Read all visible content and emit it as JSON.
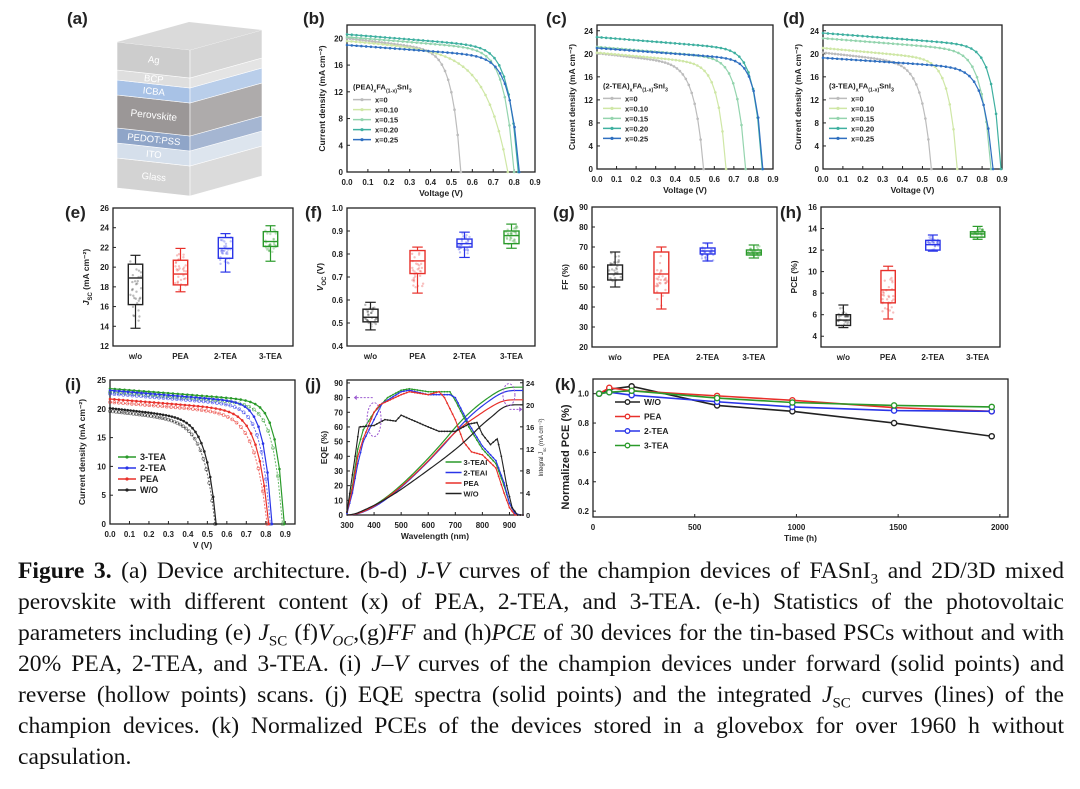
{
  "figure": {
    "device_stack": {
      "label": "(a)",
      "layers": [
        {
          "name": "Ag",
          "color": "#cdcdcd"
        },
        {
          "name": "BCP",
          "color": "#dedede"
        },
        {
          "name": "ICBA",
          "color": "#a8c2e6"
        },
        {
          "name": "Perovskite",
          "color": "#9b9797"
        },
        {
          "name": "PEDOT:PSS",
          "color": "#8fa5c8"
        },
        {
          "name": "ITO",
          "color": "#d5dfeb"
        },
        {
          "name": "Glass",
          "color": "#d3d3d3"
        }
      ]
    },
    "colors": {
      "x0": "#bcbcbc",
      "x010": "#cfe7a6",
      "x015": "#94d4ae",
      "x020": "#3fb0a0",
      "x025": "#2f6fc0",
      "wo": "#222222",
      "pea": "#e8302a",
      "tea2": "#2a35e8",
      "tea3": "#2a9a2a",
      "annot": "#9b59d0"
    }
  },
  "chart_data": [
    {
      "id": "b",
      "label": "(b)",
      "type": "line",
      "xlabel": "Voltage (V)",
      "ylabel": "Current density (mA cm⁻²)",
      "xlim": [
        0,
        0.9
      ],
      "ylim": [
        0,
        22
      ],
      "xticks": [
        "0.0",
        "0.1",
        "0.2",
        "0.3",
        "0.4",
        "0.5",
        "0.6",
        "0.7",
        "0.8",
        "0.9"
      ],
      "yticks": [
        "0",
        "4",
        "8",
        "12",
        "16",
        "20"
      ],
      "legend_title": [
        {
          "t": "(PEA)"
        },
        {
          "t": "x",
          "sub": true
        },
        {
          "t": "FA"
        },
        {
          "t": "(1-x)",
          "sub": true
        },
        {
          "t": "SnI"
        },
        {
          "t": "3",
          "sub": true
        }
      ],
      "series": [
        {
          "name": "x=0",
          "color_key": "x0",
          "jsc": 20.0,
          "voc": 0.545,
          "a": 0.045
        },
        {
          "name": "x=0.10",
          "color_key": "x010",
          "jsc": 19.6,
          "voc": 0.77,
          "a": 0.11
        },
        {
          "name": "x=0.15",
          "color_key": "x015",
          "jsc": 20.2,
          "voc": 0.8,
          "a": 0.05
        },
        {
          "name": "x=0.20",
          "color_key": "x020",
          "jsc": 20.6,
          "voc": 0.82,
          "a": 0.05
        },
        {
          "name": "x=0.25",
          "color_key": "x025",
          "jsc": 19.0,
          "voc": 0.825,
          "a": 0.05
        }
      ]
    },
    {
      "id": "c",
      "label": "(c)",
      "type": "line",
      "xlabel": "Voltage (V)",
      "ylabel": "Current density (mA cm⁻²)",
      "xlim": [
        0,
        0.9
      ],
      "ylim": [
        0,
        25
      ],
      "xticks": [
        "0.0",
        "0.1",
        "0.2",
        "0.3",
        "0.4",
        "0.5",
        "0.6",
        "0.7",
        "0.8",
        "0.9"
      ],
      "yticks": [
        "0",
        "4",
        "8",
        "12",
        "16",
        "20",
        "24"
      ],
      "legend_title": [
        {
          "t": "(2-TEA)"
        },
        {
          "t": "x",
          "sub": true
        },
        {
          "t": "FA"
        },
        {
          "t": "(1-x)",
          "sub": true
        },
        {
          "t": "SnI"
        },
        {
          "t": "3",
          "sub": true
        }
      ],
      "series": [
        {
          "name": "x=0",
          "color_key": "x0",
          "jsc": 20.1,
          "voc": 0.545,
          "a": 0.05
        },
        {
          "name": "x=0.10",
          "color_key": "x010",
          "jsc": 20.2,
          "voc": 0.66,
          "a": 0.045
        },
        {
          "name": "x=0.15",
          "color_key": "x015",
          "jsc": 21.2,
          "voc": 0.76,
          "a": 0.045
        },
        {
          "name": "x=0.20",
          "color_key": "x020",
          "jsc": 22.9,
          "voc": 0.845,
          "a": 0.045
        },
        {
          "name": "x=0.25",
          "color_key": "x025",
          "jsc": 21.0,
          "voc": 0.848,
          "a": 0.04
        }
      ]
    },
    {
      "id": "d",
      "label": "(d)",
      "type": "line",
      "xlabel": "Voltage (V)",
      "ylabel": "Current density (mA cm⁻²)",
      "xlim": [
        0,
        0.9
      ],
      "ylim": [
        0,
        25
      ],
      "xticks": [
        "0.0",
        "0.1",
        "0.2",
        "0.3",
        "0.4",
        "0.5",
        "0.6",
        "0.7",
        "0.8",
        "0.9"
      ],
      "yticks": [
        "0",
        "4",
        "8",
        "12",
        "16",
        "20",
        "24"
      ],
      "legend_title": [
        {
          "t": "(3-TEA)"
        },
        {
          "t": "x",
          "sub": true
        },
        {
          "t": "FA"
        },
        {
          "t": "(1-x)",
          "sub": true
        },
        {
          "t": "SnI"
        },
        {
          "t": "3",
          "sub": true
        }
      ],
      "series": [
        {
          "name": "x=0",
          "color_key": "x0",
          "jsc": 20.2,
          "voc": 0.545,
          "a": 0.05
        },
        {
          "name": "x=0.10",
          "color_key": "x010",
          "jsc": 21.0,
          "voc": 0.675,
          "a": 0.045
        },
        {
          "name": "x=0.15",
          "color_key": "x015",
          "jsc": 22.7,
          "voc": 0.845,
          "a": 0.05
        },
        {
          "name": "x=0.20",
          "color_key": "x020",
          "jsc": 23.6,
          "voc": 0.895,
          "a": 0.045
        },
        {
          "name": "x=0.25",
          "color_key": "x025",
          "jsc": 19.3,
          "voc": 0.855,
          "a": 0.05
        }
      ]
    },
    {
      "id": "e",
      "label": "(e)",
      "type": "box",
      "ylabel": [
        {
          "t": "J",
          "i": true
        },
        {
          "t": "SC",
          "sub": true
        },
        {
          "t": " (mA cm⁻²)"
        }
      ],
      "ylim": [
        12,
        26
      ],
      "yticks": [
        "12",
        "14",
        "16",
        "18",
        "20",
        "22",
        "24",
        "26"
      ],
      "categories": [
        "w/o",
        "PEA",
        "2-TEA",
        "3-TEA"
      ],
      "color_keys": [
        "wo",
        "pea",
        "tea2",
        "tea3"
      ],
      "stats": [
        [
          13.8,
          16.2,
          18.9,
          20.3,
          21.2
        ],
        [
          17.5,
          18.2,
          19.3,
          20.7,
          21.9
        ],
        [
          19.5,
          20.9,
          21.9,
          23.0,
          23.4
        ],
        [
          20.6,
          22.1,
          22.6,
          23.6,
          24.2
        ]
      ]
    },
    {
      "id": "f",
      "label": "(f)",
      "type": "box",
      "ylabel": [
        {
          "t": "V",
          "i": true
        },
        {
          "t": "OC",
          "sub": true
        },
        {
          "t": " (V)"
        }
      ],
      "ylim": [
        0.4,
        1.0
      ],
      "yticks": [
        "0.4",
        "0.5",
        "0.6",
        "0.7",
        "0.8",
        "0.9",
        "1.0"
      ],
      "categories": [
        "w/o",
        "PEA",
        "2-TEA",
        "3-TEA"
      ],
      "color_keys": [
        "wo",
        "pea",
        "tea2",
        "tea3"
      ],
      "stats": [
        [
          0.47,
          0.505,
          0.525,
          0.56,
          0.59
        ],
        [
          0.63,
          0.715,
          0.77,
          0.815,
          0.83
        ],
        [
          0.785,
          0.83,
          0.845,
          0.865,
          0.895
        ],
        [
          0.825,
          0.845,
          0.88,
          0.9,
          0.93
        ]
      ]
    },
    {
      "id": "g",
      "label": "(g)",
      "type": "box",
      "ylabel": [
        {
          "t": "FF (%)"
        }
      ],
      "ylim": [
        20,
        90
      ],
      "yticks": [
        "20",
        "30",
        "40",
        "50",
        "60",
        "70",
        "80",
        "90"
      ],
      "categories": [
        "w/o",
        "PEA",
        "2-TEA",
        "3-TEA"
      ],
      "color_keys": [
        "wo",
        "pea",
        "tea2",
        "tea3"
      ],
      "stats": [
        [
          50,
          53.5,
          56.5,
          61,
          67.5
        ],
        [
          39,
          47,
          56.5,
          67.5,
          70
        ],
        [
          63,
          66.5,
          68,
          69.5,
          72
        ],
        [
          64.5,
          66,
          67,
          68.5,
          71
        ]
      ]
    },
    {
      "id": "h",
      "label": "(h)",
      "type": "box",
      "ylabel": [
        {
          "t": "PCE (%)"
        }
      ],
      "ylim": [
        3,
        16
      ],
      "yticks": [
        "4",
        "6",
        "8",
        "10",
        "12",
        "14",
        "16"
      ],
      "categories": [
        "w/o",
        "PEA",
        "2-TEA",
        "3-TEA"
      ],
      "color_keys": [
        "wo",
        "pea",
        "tea2",
        "tea3"
      ],
      "stats": [
        [
          4.8,
          5.0,
          5.5,
          6.0,
          6.9
        ],
        [
          5.6,
          7.1,
          8.3,
          10.1,
          10.5
        ],
        [
          11.9,
          12.0,
          12.5,
          12.9,
          13.4
        ],
        [
          13.0,
          13.2,
          13.5,
          13.7,
          14.2
        ]
      ]
    },
    {
      "id": "i",
      "label": "(i)",
      "type": "line",
      "xlabel": "V (V)",
      "ylabel": "Current density (mA cm⁻²)",
      "xlim": [
        0,
        0.95
      ],
      "ylim": [
        0,
        25
      ],
      "xticks": [
        "0.0",
        "0.1",
        "0.2",
        "0.3",
        "0.4",
        "0.5",
        "0.6",
        "0.7",
        "0.8",
        "0.9"
      ],
      "yticks": [
        "0",
        "5",
        "10",
        "15",
        "20",
        "25"
      ],
      "reverse_scan": true,
      "series": [
        {
          "name": "3-TEA",
          "color_key": "tea3",
          "jsc": 23.5,
          "voc": 0.895,
          "a": 0.045
        },
        {
          "name": "2-TEA",
          "color_key": "tea2",
          "jsc": 23.2,
          "voc": 0.832,
          "a": 0.045
        },
        {
          "name": "PEA",
          "color_key": "pea",
          "jsc": 21.7,
          "voc": 0.815,
          "a": 0.06
        },
        {
          "name": "W/O",
          "color_key": "wo",
          "jsc": 20.1,
          "voc": 0.545,
          "a": 0.055
        }
      ]
    },
    {
      "id": "j",
      "label": "(j)",
      "type": "line",
      "xlabel": "Wavelength (nm)",
      "ylabel": "EQE (%)",
      "y2label": [
        {
          "t": "Integral "
        },
        {
          "t": "J",
          "i": true
        },
        {
          "t": "sc",
          "sub": true
        },
        {
          "t": " (mA cm⁻²)"
        }
      ],
      "xlim": [
        300,
        950
      ],
      "ylim": [
        0,
        92
      ],
      "y2lim": [
        0,
        24.5
      ],
      "xticks": [
        "300",
        "400",
        "500",
        "600",
        "700",
        "800",
        "900"
      ],
      "yticks": [
        "0",
        "10",
        "20",
        "30",
        "40",
        "50",
        "60",
        "70",
        "80",
        "90"
      ],
      "y2ticks": [
        "0",
        "4",
        "8",
        "12",
        "16",
        "20",
        "24"
      ],
      "series": [
        {
          "name": "3-TEAI",
          "color_key": "tea3",
          "integral_final": 23.2,
          "x": [
            300,
            320,
            340,
            360,
            400,
            450,
            500,
            530,
            600,
            680,
            700,
            750,
            800,
            850,
            880,
            900,
            920,
            940
          ],
          "y": [
            2,
            20,
            45,
            58,
            70,
            80,
            85,
            86,
            84,
            84,
            78,
            60,
            45,
            35,
            20,
            8,
            1,
            0
          ]
        },
        {
          "name": "2-TEAI",
          "color_key": "tea2",
          "integral_final": 22.6,
          "x": [
            300,
            320,
            340,
            360,
            400,
            430,
            500,
            530,
            600,
            680,
            700,
            750,
            800,
            850,
            880,
            900,
            920,
            940
          ],
          "y": [
            1,
            15,
            35,
            50,
            65,
            76,
            84,
            85,
            82,
            82,
            80,
            62,
            47,
            37,
            22,
            8,
            1,
            0
          ]
        },
        {
          "name": "PEA",
          "color_key": "pea",
          "integral_final": 20.9,
          "x": [
            300,
            320,
            340,
            360,
            400,
            420,
            500,
            530,
            600,
            640,
            660,
            700,
            730,
            760,
            800,
            850,
            880,
            900,
            920
          ],
          "y": [
            2,
            18,
            40,
            52,
            70,
            75,
            82,
            84,
            82,
            84,
            80,
            65,
            50,
            43,
            41,
            32,
            15,
            5,
            0
          ]
        },
        {
          "name": "W/O",
          "color_key": "wo",
          "integral_final": 20.0,
          "x": [
            300,
            330,
            345,
            400,
            440,
            480,
            500,
            550,
            600,
            640,
            700,
            750,
            780,
            800,
            830,
            855,
            870,
            890,
            910,
            930
          ],
          "y": [
            2,
            40,
            60,
            61,
            65,
            64,
            68,
            64,
            60,
            57,
            57,
            62,
            63,
            55,
            48,
            52,
            40,
            20,
            5,
            0
          ]
        }
      ]
    },
    {
      "id": "k",
      "label": "(k)",
      "type": "line",
      "xlabel": "Time (h)",
      "ylabel": "Normalized PCE (%)",
      "xlim": [
        0,
        2040
      ],
      "ylim": [
        0.16,
        1.1
      ],
      "xticks": [
        "0",
        "500",
        "1000",
        "1500",
        "2000"
      ],
      "yticks": [
        "0.2",
        "0.4",
        "0.6",
        "0.8",
        "1.0"
      ],
      "x": [
        30,
        80,
        190,
        610,
        980,
        1480,
        1960
      ],
      "series": [
        {
          "name": "W/O",
          "color_key": "wo",
          "y": [
            1.0,
            1.03,
            1.05,
            0.92,
            0.88,
            0.8,
            0.71
          ]
        },
        {
          "name": "PEA",
          "color_key": "pea",
          "y": [
            1.0,
            1.04,
            1.02,
            0.985,
            0.955,
            0.905,
            0.88
          ]
        },
        {
          "name": "2-TEA",
          "color_key": "tea2",
          "y": [
            1.0,
            1.01,
            0.99,
            0.945,
            0.91,
            0.885,
            0.88
          ]
        },
        {
          "name": "3-TEA",
          "color_key": "tea3",
          "y": [
            1.0,
            1.01,
            1.02,
            0.97,
            0.94,
            0.92,
            0.91
          ]
        }
      ]
    }
  ],
  "caption": [
    {
      "t": "Figure 3.",
      "b": true
    },
    {
      "t": " (a) Device architecture. (b-d) "
    },
    {
      "t": "J-V",
      "i": true
    },
    {
      "t": " curves of the champion devices of FASnI"
    },
    {
      "t": "3",
      "sub": true
    },
    {
      "t": " and 2D/3D mixed perovskite with different content (x) of PEA, 2-TEA, and 3-TEA. (e-h) Statistics of the photovoltaic parameters including (e) "
    },
    {
      "t": "J",
      "i": true
    },
    {
      "t": "SC",
      "sub": true
    },
    {
      "t": " (f)"
    },
    {
      "t": "V",
      "i": true
    },
    {
      "t": "OC",
      "sub": true,
      "i": true
    },
    {
      "t": ",(g)"
    },
    {
      "t": "FF",
      "i": true
    },
    {
      "t": " and (h)"
    },
    {
      "t": "PCE",
      "i": true
    },
    {
      "t": " of 30 devices for the tin-based  PSCs without and with 20% PEA, 2-TEA, and 3-TEA. (i) "
    },
    {
      "t": "J–V",
      "i": true
    },
    {
      "t": " curves of the champion devices under forward (solid points) and reverse (hollow points) scans. (j) EQE spectra (solid points) and the integrated "
    },
    {
      "t": "J",
      "i": true
    },
    {
      "t": "SC",
      "sub": true
    },
    {
      "t": " curves (lines) of the champion devices. (k) Normalized PCEs of the devices stored in a glovebox for over 1960 h without capsulation."
    }
  ]
}
